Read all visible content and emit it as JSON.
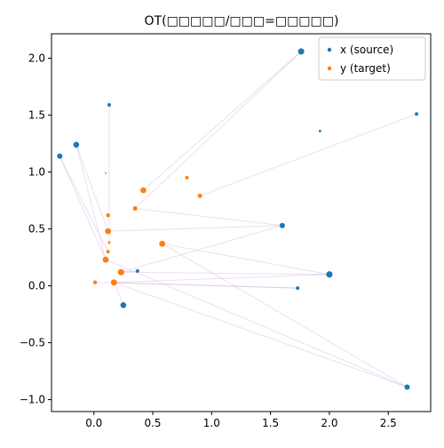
{
  "chart_data": {
    "type": "scatter",
    "title": "OT(□□□□□/□□□=□□□□□)",
    "xlabel": "",
    "ylabel": "",
    "xlim": [
      -0.36,
      2.86
    ],
    "ylim": [
      -1.105,
      2.215
    ],
    "x_ticks": [
      0.0,
      0.5,
      1.0,
      1.5,
      2.0,
      2.5
    ],
    "x_tick_labels": [
      "0.0",
      "0.5",
      "1.0",
      "1.5",
      "2.0",
      "2.5"
    ],
    "y_ticks": [
      -1.0,
      -0.5,
      0.0,
      0.5,
      1.0,
      1.5,
      2.0
    ],
    "y_tick_labels": [
      "−1.0",
      "−0.5",
      "0.0",
      "0.5",
      "1.0",
      "1.5",
      "2.0"
    ],
    "grid": false,
    "legend": "upper right",
    "series": [
      {
        "name": "x (source)",
        "color": "#1f77b4",
        "points": [
          {
            "x": 1.76,
            "y": 2.06,
            "w": 3.5
          },
          {
            "x": 0.13,
            "y": 1.59,
            "w": 2.0
          },
          {
            "x": 2.74,
            "y": 1.51,
            "w": 2.0
          },
          {
            "x": -0.15,
            "y": 1.24,
            "w": 3.3
          },
          {
            "x": 1.92,
            "y": 1.36,
            "w": 1.4
          },
          {
            "x": -0.29,
            "y": 1.14,
            "w": 3.0
          },
          {
            "x": 1.6,
            "y": 0.53,
            "w": 3.0
          },
          {
            "x": 0.37,
            "y": 0.13,
            "w": 2.0
          },
          {
            "x": 2.0,
            "y": 0.1,
            "w": 3.6
          },
          {
            "x": 1.73,
            "y": -0.02,
            "w": 2.0
          },
          {
            "x": 0.25,
            "y": -0.17,
            "w": 3.3
          },
          {
            "x": 2.66,
            "y": -0.89,
            "w": 3.0
          }
        ]
      },
      {
        "name": "y (target)",
        "color": "#ff7f0e",
        "points": [
          {
            "x": 0.79,
            "y": 0.95,
            "w": 2.0
          },
          {
            "x": 0.42,
            "y": 0.84,
            "w": 3.3
          },
          {
            "x": 0.1,
            "y": 0.99,
            "w": 1.0
          },
          {
            "x": 0.9,
            "y": 0.79,
            "w": 2.5
          },
          {
            "x": 0.35,
            "y": 0.68,
            "w": 2.5
          },
          {
            "x": 0.12,
            "y": 0.62,
            "w": 2.2
          },
          {
            "x": 0.12,
            "y": 0.48,
            "w": 3.4
          },
          {
            "x": 0.13,
            "y": 0.38,
            "w": 1.5
          },
          {
            "x": 0.58,
            "y": 0.37,
            "w": 3.4
          },
          {
            "x": 0.12,
            "y": 0.3,
            "w": 2.0
          },
          {
            "x": 0.1,
            "y": 0.23,
            "w": 3.4
          },
          {
            "x": 0.23,
            "y": 0.12,
            "w": 3.6
          },
          {
            "x": 0.01,
            "y": 0.03,
            "w": 2.2
          },
          {
            "x": 0.17,
            "y": 0.03,
            "w": 3.4
          }
        ]
      }
    ],
    "transport_lines": {
      "color": "#c9a2d8",
      "pairs": [
        [
          [
            1.76,
            2.06
          ],
          [
            0.42,
            0.84
          ]
        ],
        [
          [
            1.76,
            2.06
          ],
          [
            0.35,
            0.68
          ]
        ],
        [
          [
            0.13,
            1.59
          ],
          [
            0.13,
            0.38
          ]
        ],
        [
          [
            2.74,
            1.51
          ],
          [
            0.9,
            0.79
          ]
        ],
        [
          [
            -0.15,
            1.24
          ],
          [
            0.12,
            0.48
          ]
        ],
        [
          [
            -0.15,
            1.24
          ],
          [
            0.1,
            0.23
          ]
        ],
        [
          [
            -0.29,
            1.14
          ],
          [
            0.1,
            0.23
          ]
        ],
        [
          [
            -0.29,
            1.14
          ],
          [
            0.12,
            0.3
          ]
        ],
        [
          [
            1.6,
            0.53
          ],
          [
            0.12,
            0.48
          ]
        ],
        [
          [
            1.6,
            0.53
          ],
          [
            0.23,
            0.12
          ]
        ],
        [
          [
            1.6,
            0.53
          ],
          [
            0.35,
            0.68
          ]
        ],
        [
          [
            0.37,
            0.13
          ],
          [
            0.23,
            0.12
          ]
        ],
        [
          [
            2.0,
            0.1
          ],
          [
            0.58,
            0.37
          ]
        ],
        [
          [
            2.0,
            0.1
          ],
          [
            0.23,
            0.12
          ]
        ],
        [
          [
            2.0,
            0.1
          ],
          [
            0.17,
            0.03
          ]
        ],
        [
          [
            1.73,
            -0.02
          ],
          [
            0.17,
            0.03
          ]
        ],
        [
          [
            1.73,
            -0.02
          ],
          [
            0.01,
            0.03
          ]
        ],
        [
          [
            0.25,
            -0.17
          ],
          [
            0.17,
            0.03
          ]
        ],
        [
          [
            2.66,
            -0.89
          ],
          [
            0.17,
            0.03
          ]
        ],
        [
          [
            2.66,
            -0.89
          ],
          [
            0.1,
            0.23
          ]
        ],
        [
          [
            2.66,
            -0.89
          ],
          [
            0.58,
            0.37
          ]
        ]
      ]
    }
  }
}
